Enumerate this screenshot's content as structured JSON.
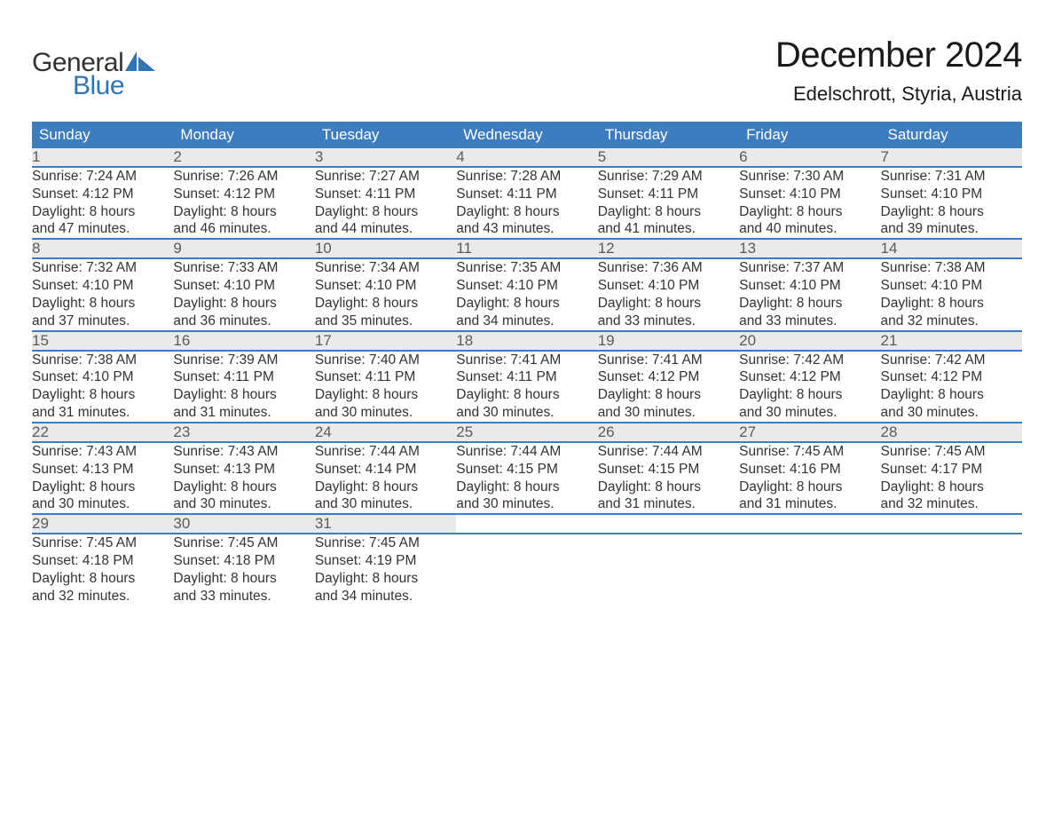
{
  "logo": {
    "word1": "General",
    "word2": "Blue"
  },
  "title": "December 2024",
  "location": "Edelschrott, Styria, Austria",
  "colors": {
    "header_bg": "#3d7cbf",
    "header_text": "#ffffff",
    "daynum_bg": "#eaeaea",
    "daynum_text": "#5a5a5a",
    "body_text": "#333333",
    "logo_blue": "#2f75b5",
    "page_bg": "#ffffff",
    "row_border": "#3d7cbf"
  },
  "typography": {
    "title_fontsize": 40,
    "location_fontsize": 22,
    "header_fontsize": 17,
    "daynum_fontsize": 17,
    "cell_fontsize": 15.5,
    "logo_fontsize": 30,
    "font_family": "Arial"
  },
  "layout": {
    "columns": 7,
    "weeks": 5
  },
  "header_days": [
    "Sunday",
    "Monday",
    "Tuesday",
    "Wednesday",
    "Thursday",
    "Friday",
    "Saturday"
  ],
  "weeks": [
    [
      {
        "num": "1",
        "sunrise": "Sunrise: 7:24 AM",
        "sunset": "Sunset: 4:12 PM",
        "dl1": "Daylight: 8 hours",
        "dl2": "and 47 minutes."
      },
      {
        "num": "2",
        "sunrise": "Sunrise: 7:26 AM",
        "sunset": "Sunset: 4:12 PM",
        "dl1": "Daylight: 8 hours",
        "dl2": "and 46 minutes."
      },
      {
        "num": "3",
        "sunrise": "Sunrise: 7:27 AM",
        "sunset": "Sunset: 4:11 PM",
        "dl1": "Daylight: 8 hours",
        "dl2": "and 44 minutes."
      },
      {
        "num": "4",
        "sunrise": "Sunrise: 7:28 AM",
        "sunset": "Sunset: 4:11 PM",
        "dl1": "Daylight: 8 hours",
        "dl2": "and 43 minutes."
      },
      {
        "num": "5",
        "sunrise": "Sunrise: 7:29 AM",
        "sunset": "Sunset: 4:11 PM",
        "dl1": "Daylight: 8 hours",
        "dl2": "and 41 minutes."
      },
      {
        "num": "6",
        "sunrise": "Sunrise: 7:30 AM",
        "sunset": "Sunset: 4:10 PM",
        "dl1": "Daylight: 8 hours",
        "dl2": "and 40 minutes."
      },
      {
        "num": "7",
        "sunrise": "Sunrise: 7:31 AM",
        "sunset": "Sunset: 4:10 PM",
        "dl1": "Daylight: 8 hours",
        "dl2": "and 39 minutes."
      }
    ],
    [
      {
        "num": "8",
        "sunrise": "Sunrise: 7:32 AM",
        "sunset": "Sunset: 4:10 PM",
        "dl1": "Daylight: 8 hours",
        "dl2": "and 37 minutes."
      },
      {
        "num": "9",
        "sunrise": "Sunrise: 7:33 AM",
        "sunset": "Sunset: 4:10 PM",
        "dl1": "Daylight: 8 hours",
        "dl2": "and 36 minutes."
      },
      {
        "num": "10",
        "sunrise": "Sunrise: 7:34 AM",
        "sunset": "Sunset: 4:10 PM",
        "dl1": "Daylight: 8 hours",
        "dl2": "and 35 minutes."
      },
      {
        "num": "11",
        "sunrise": "Sunrise: 7:35 AM",
        "sunset": "Sunset: 4:10 PM",
        "dl1": "Daylight: 8 hours",
        "dl2": "and 34 minutes."
      },
      {
        "num": "12",
        "sunrise": "Sunrise: 7:36 AM",
        "sunset": "Sunset: 4:10 PM",
        "dl1": "Daylight: 8 hours",
        "dl2": "and 33 minutes."
      },
      {
        "num": "13",
        "sunrise": "Sunrise: 7:37 AM",
        "sunset": "Sunset: 4:10 PM",
        "dl1": "Daylight: 8 hours",
        "dl2": "and 33 minutes."
      },
      {
        "num": "14",
        "sunrise": "Sunrise: 7:38 AM",
        "sunset": "Sunset: 4:10 PM",
        "dl1": "Daylight: 8 hours",
        "dl2": "and 32 minutes."
      }
    ],
    [
      {
        "num": "15",
        "sunrise": "Sunrise: 7:38 AM",
        "sunset": "Sunset: 4:10 PM",
        "dl1": "Daylight: 8 hours",
        "dl2": "and 31 minutes."
      },
      {
        "num": "16",
        "sunrise": "Sunrise: 7:39 AM",
        "sunset": "Sunset: 4:11 PM",
        "dl1": "Daylight: 8 hours",
        "dl2": "and 31 minutes."
      },
      {
        "num": "17",
        "sunrise": "Sunrise: 7:40 AM",
        "sunset": "Sunset: 4:11 PM",
        "dl1": "Daylight: 8 hours",
        "dl2": "and 30 minutes."
      },
      {
        "num": "18",
        "sunrise": "Sunrise: 7:41 AM",
        "sunset": "Sunset: 4:11 PM",
        "dl1": "Daylight: 8 hours",
        "dl2": "and 30 minutes."
      },
      {
        "num": "19",
        "sunrise": "Sunrise: 7:41 AM",
        "sunset": "Sunset: 4:12 PM",
        "dl1": "Daylight: 8 hours",
        "dl2": "and 30 minutes."
      },
      {
        "num": "20",
        "sunrise": "Sunrise: 7:42 AM",
        "sunset": "Sunset: 4:12 PM",
        "dl1": "Daylight: 8 hours",
        "dl2": "and 30 minutes."
      },
      {
        "num": "21",
        "sunrise": "Sunrise: 7:42 AM",
        "sunset": "Sunset: 4:12 PM",
        "dl1": "Daylight: 8 hours",
        "dl2": "and 30 minutes."
      }
    ],
    [
      {
        "num": "22",
        "sunrise": "Sunrise: 7:43 AM",
        "sunset": "Sunset: 4:13 PM",
        "dl1": "Daylight: 8 hours",
        "dl2": "and 30 minutes."
      },
      {
        "num": "23",
        "sunrise": "Sunrise: 7:43 AM",
        "sunset": "Sunset: 4:13 PM",
        "dl1": "Daylight: 8 hours",
        "dl2": "and 30 minutes."
      },
      {
        "num": "24",
        "sunrise": "Sunrise: 7:44 AM",
        "sunset": "Sunset: 4:14 PM",
        "dl1": "Daylight: 8 hours",
        "dl2": "and 30 minutes."
      },
      {
        "num": "25",
        "sunrise": "Sunrise: 7:44 AM",
        "sunset": "Sunset: 4:15 PM",
        "dl1": "Daylight: 8 hours",
        "dl2": "and 30 minutes."
      },
      {
        "num": "26",
        "sunrise": "Sunrise: 7:44 AM",
        "sunset": "Sunset: 4:15 PM",
        "dl1": "Daylight: 8 hours",
        "dl2": "and 31 minutes."
      },
      {
        "num": "27",
        "sunrise": "Sunrise: 7:45 AM",
        "sunset": "Sunset: 4:16 PM",
        "dl1": "Daylight: 8 hours",
        "dl2": "and 31 minutes."
      },
      {
        "num": "28",
        "sunrise": "Sunrise: 7:45 AM",
        "sunset": "Sunset: 4:17 PM",
        "dl1": "Daylight: 8 hours",
        "dl2": "and 32 minutes."
      }
    ],
    [
      {
        "num": "29",
        "sunrise": "Sunrise: 7:45 AM",
        "sunset": "Sunset: 4:18 PM",
        "dl1": "Daylight: 8 hours",
        "dl2": "and 32 minutes."
      },
      {
        "num": "30",
        "sunrise": "Sunrise: 7:45 AM",
        "sunset": "Sunset: 4:18 PM",
        "dl1": "Daylight: 8 hours",
        "dl2": "and 33 minutes."
      },
      {
        "num": "31",
        "sunrise": "Sunrise: 7:45 AM",
        "sunset": "Sunset: 4:19 PM",
        "dl1": "Daylight: 8 hours",
        "dl2": "and 34 minutes."
      },
      null,
      null,
      null,
      null
    ]
  ]
}
